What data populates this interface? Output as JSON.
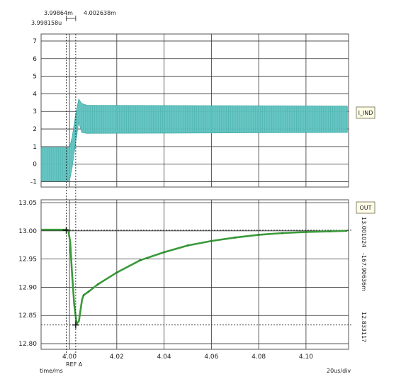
{
  "chart_data": [
    {
      "id": "top",
      "type": "line",
      "series": [
        {
          "name": "I_IND",
          "color": "#5fc4c0"
        }
      ],
      "ylim": [
        -1.3,
        7.4
      ],
      "yticks": [
        -1,
        0,
        1,
        2,
        3,
        4,
        5,
        6,
        7
      ],
      "xlim": [
        3.988,
        4.118
      ],
      "envelope": {
        "x": [
          3.988,
          4.0,
          4.0011,
          4.0026,
          4.0039,
          4.0052,
          4.0075,
          4.1175
        ],
        "upper": [
          0.95,
          0.95,
          1.5,
          2.8,
          3.7,
          3.45,
          3.35,
          3.3
        ],
        "lower": [
          -0.95,
          -0.95,
          -0.2,
          1.2,
          2.4,
          1.8,
          1.75,
          1.8
        ]
      },
      "cursors": {
        "x1_label": "3.99864m",
        "x2_label": "4.002638m",
        "delta_label": "3.998158u",
        "x1": 3.99864,
        "x2": 4.002638
      },
      "tag": "I_IND"
    },
    {
      "id": "bottom",
      "type": "line",
      "series": [
        {
          "name": "OUT",
          "color": "#3a9a3a"
        }
      ],
      "ylim": [
        12.79,
        13.055
      ],
      "yticks": [
        12.8,
        12.85,
        12.9,
        12.95,
        13.0,
        13.05
      ],
      "ytick_labels": [
        "12.80",
        "12.85",
        "12.90",
        "12.95",
        "13.00",
        "13.05"
      ],
      "xlim": [
        3.988,
        4.118
      ],
      "xticks": [
        4.0,
        4.02,
        4.04,
        4.06,
        4.08,
        4.1
      ],
      "xtick_labels": [
        "4.00",
        "4.02",
        "4.04",
        "4.06",
        "4.08",
        "4.10"
      ],
      "x": [
        3.988,
        3.999,
        3.9995,
        4.0003,
        4.001,
        4.002,
        4.003,
        4.004,
        4.0053,
        4.006,
        4.008,
        4.012,
        4.02,
        4.03,
        4.04,
        4.05,
        4.06,
        4.07,
        4.08,
        4.09,
        4.1,
        4.11,
        4.117
      ],
      "y": [
        13.002,
        13.002,
        13.001,
        12.98,
        12.93,
        12.87,
        12.835,
        12.84,
        12.878,
        12.886,
        12.892,
        12.905,
        12.926,
        12.948,
        12.962,
        12.974,
        12.982,
        12.988,
        12.993,
        12.996,
        12.998,
        12.999,
        13.0
      ],
      "ref_levels": [
        13.001024,
        12.833117
      ],
      "right_labels": [
        "13.001024",
        "-167.90636m",
        "12.833117"
      ],
      "xlabel": "time/ms",
      "ref_label": "REF A",
      "scale_label": "20us/div",
      "tag": "OUT"
    }
  ]
}
